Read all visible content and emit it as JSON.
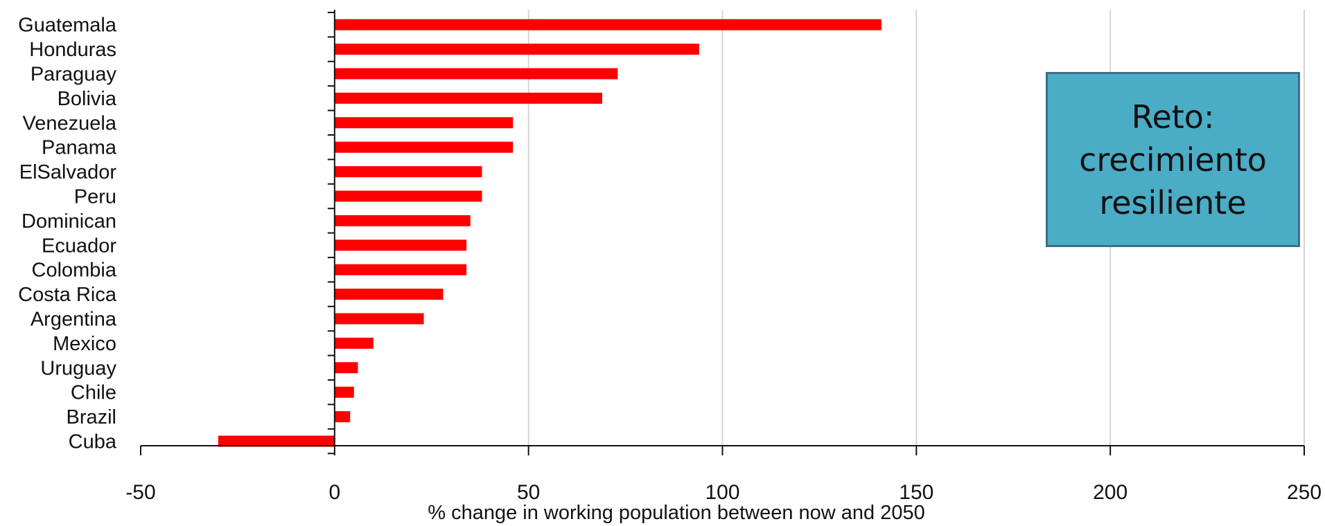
{
  "chart_data": {
    "type": "bar",
    "orientation": "horizontal",
    "categories": [
      "Guatemala",
      "Honduras",
      "Paraguay",
      "Bolivia",
      "Venezuela",
      "Panama",
      "ElSalvador",
      "Peru",
      "Dominican",
      "Ecuador",
      "Colombia",
      "Costa Rica",
      "Argentina",
      "Mexico",
      "Uruguay",
      "Chile",
      "Brazil",
      "Cuba"
    ],
    "values": [
      141,
      94,
      73,
      69,
      46,
      46,
      38,
      38,
      35,
      34,
      34,
      28,
      23,
      10,
      6,
      5,
      4,
      -30
    ],
    "xlabel": "% change in working population between now and 2050",
    "xlim": [
      -50,
      250
    ],
    "xticks": [
      -50,
      0,
      50,
      100,
      150,
      200,
      250
    ],
    "xtick_labels": [
      "-50",
      "0",
      "50",
      "100",
      "150",
      "200",
      "250"
    ],
    "grid": "vertical",
    "bar_color": "#ff0000"
  },
  "callout": {
    "lines": [
      "Reto:",
      "crecimiento",
      "resiliente"
    ],
    "background": "#4bacc6",
    "border": "#3a6f86"
  }
}
